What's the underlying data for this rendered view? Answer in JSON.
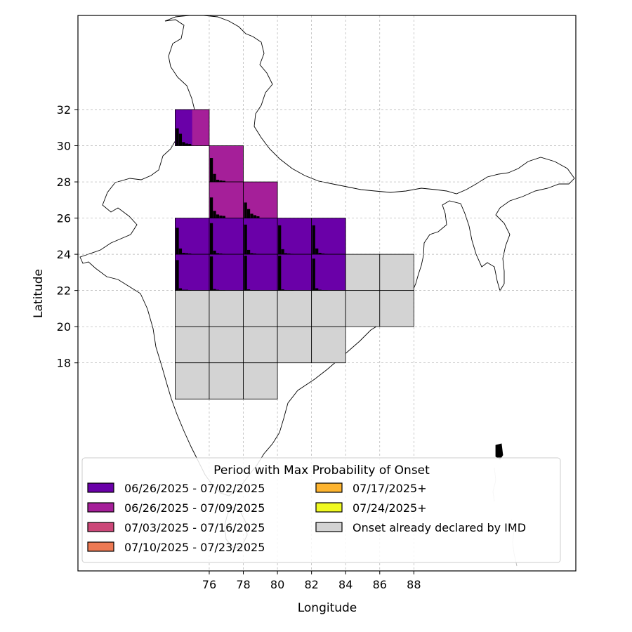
{
  "chart_data": {
    "type": "heatmap",
    "xlabel": "Longitude",
    "ylabel": "Latitude",
    "x_ticks": [
      76,
      78,
      80,
      82,
      84,
      86,
      88
    ],
    "y_ticks": [
      18,
      20,
      22,
      24,
      26,
      28,
      30,
      32
    ],
    "xlim": [
      68.3,
      97.5
    ],
    "ylim": [
      6.5,
      37.2
    ],
    "grid": true,
    "cell_size_deg": 2,
    "legend": {
      "title": "Period with Max Probability of Onset",
      "placement": "lower-center",
      "entries": [
        {
          "label": "06/26/2025 - 07/02/2025",
          "color": "#6a00a8"
        },
        {
          "label": "06/26/2025 - 07/09/2025",
          "color": "#a51f99"
        },
        {
          "label": "07/03/2025 - 07/16/2025",
          "color": "#cc4778"
        },
        {
          "label": "07/10/2025 - 07/23/2025",
          "color": "#ed7953"
        },
        {
          "label": "07/17/2025+",
          "color": "#fdb42f"
        },
        {
          "label": "07/24/2025+",
          "color": "#f0f921"
        },
        {
          "label": "Onset already declared by IMD",
          "color": "#d3d3d3"
        }
      ]
    },
    "cells": [
      {
        "lon": 75,
        "lat": 31,
        "category": "06/26/2025 - 07/02/2025 | 06/26/2025 - 07/09/2025",
        "bars": [
          0.48,
          0.33,
          0.1,
          0.06,
          0.05
        ]
      },
      {
        "lon": 77,
        "lat": 29,
        "category": "06/26/2025 - 07/09/2025",
        "bars": [
          0.66,
          0.22,
          0.06,
          0.04,
          0.03
        ]
      },
      {
        "lon": 77,
        "lat": 27,
        "category": "06/26/2025 - 07/09/2025",
        "bars": [
          0.57,
          0.2,
          0.1,
          0.07,
          0.06
        ]
      },
      {
        "lon": 79,
        "lat": 27,
        "category": "06/26/2025 - 07/09/2025",
        "bars": [
          0.43,
          0.25,
          0.12,
          0.08,
          0.05
        ]
      },
      {
        "lon": 75,
        "lat": 25,
        "category": "06/26/2025 - 07/02/2025",
        "bars": [
          0.73,
          0.16,
          0.04,
          0.03,
          0.02
        ]
      },
      {
        "lon": 77,
        "lat": 25,
        "category": "06/26/2025 - 07/02/2025",
        "bars": [
          0.86,
          0.1,
          0.03,
          0.02,
          0.01
        ]
      },
      {
        "lon": 79,
        "lat": 25,
        "category": "06/26/2025 - 07/02/2025",
        "bars": [
          0.82,
          0.12,
          0.03,
          0.02,
          0.01
        ]
      },
      {
        "lon": 81,
        "lat": 25,
        "category": "06/26/2025 - 07/02/2025",
        "bars": [
          0.8,
          0.14,
          0.03,
          0.02,
          0.01
        ]
      },
      {
        "lon": 83,
        "lat": 25,
        "category": "06/26/2025 - 07/02/2025",
        "bars": [
          0.8,
          0.16,
          0.04,
          0.02,
          0.01
        ]
      },
      {
        "lon": 75,
        "lat": 23,
        "category": "06/26/2025 - 07/02/2025",
        "bars": [
          0.84,
          0.06,
          0.02,
          0.02,
          0.01
        ]
      },
      {
        "lon": 77,
        "lat": 23,
        "category": "06/26/2025 - 07/02/2025",
        "bars": [
          0.94,
          0.04,
          0.02,
          0.01,
          0.01
        ]
      },
      {
        "lon": 79,
        "lat": 23,
        "category": "06/26/2025 - 07/02/2025",
        "bars": [
          0.96,
          0.03,
          0.01,
          0.01,
          0.01
        ]
      },
      {
        "lon": 81,
        "lat": 23,
        "category": "06/26/2025 - 07/02/2025",
        "bars": [
          0.96,
          0.03,
          0.01,
          0.01,
          0.01
        ]
      },
      {
        "lon": 83,
        "lat": 23,
        "category": "06/26/2025 - 07/02/2025",
        "bars": [
          0.88,
          0.06,
          0.02,
          0.01,
          0.01
        ]
      },
      {
        "lon": 85,
        "lat": 23,
        "category": "Onset already declared by IMD"
      },
      {
        "lon": 87,
        "lat": 23,
        "category": "Onset already declared by IMD"
      },
      {
        "lon": 75,
        "lat": 21,
        "category": "Onset already declared by IMD"
      },
      {
        "lon": 77,
        "lat": 21,
        "category": "Onset already declared by IMD"
      },
      {
        "lon": 79,
        "lat": 21,
        "category": "Onset already declared by IMD"
      },
      {
        "lon": 81,
        "lat": 21,
        "category": "Onset already declared by IMD"
      },
      {
        "lon": 83,
        "lat": 21,
        "category": "Onset already declared by IMD"
      },
      {
        "lon": 85,
        "lat": 21,
        "category": "Onset already declared by IMD"
      },
      {
        "lon": 87,
        "lat": 21,
        "category": "Onset already declared by IMD"
      },
      {
        "lon": 75,
        "lat": 19,
        "category": "Onset already declared by IMD"
      },
      {
        "lon": 77,
        "lat": 19,
        "category": "Onset already declared by IMD"
      },
      {
        "lon": 79,
        "lat": 19,
        "category": "Onset already declared by IMD"
      },
      {
        "lon": 81,
        "lat": 19,
        "category": "Onset already declared by IMD"
      },
      {
        "lon": 83,
        "lat": 19,
        "category": "Onset already declared by IMD"
      },
      {
        "lon": 75,
        "lat": 17,
        "category": "Onset already declared by IMD"
      },
      {
        "lon": 77,
        "lat": 17,
        "category": "Onset already declared by IMD"
      },
      {
        "lon": 79,
        "lat": 17,
        "category": "Onset already declared by IMD"
      }
    ]
  }
}
